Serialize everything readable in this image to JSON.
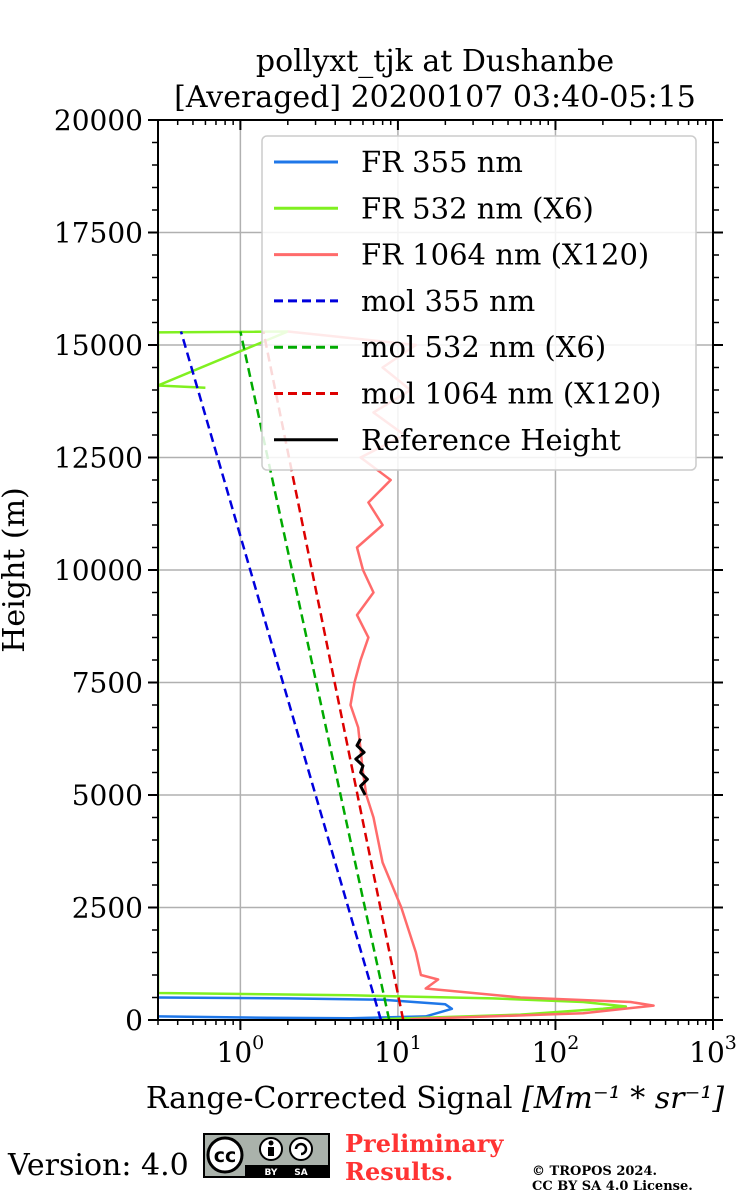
{
  "chart_data": {
    "type": "line",
    "title_line1": "pollyxt_tjk at Dushanbe",
    "title_line2": "[Averaged] 20200107 03:40-05:15",
    "xlabel_text": "Range-Corrected Signal",
    "xlabel_units": "[Mm⁻¹ * sr⁻¹]",
    "ylabel": "Height (m)",
    "xscale": "log",
    "xlim": [
      0.3,
      1000
    ],
    "ylim": [
      0,
      20000
    ],
    "grid": true,
    "legend_position": "upper-right",
    "x_ticks": [
      {
        "value": 1,
        "base": "10",
        "exp": "0"
      },
      {
        "value": 10,
        "base": "10",
        "exp": "1"
      },
      {
        "value": 100,
        "base": "10",
        "exp": "2"
      },
      {
        "value": 1000,
        "base": "10",
        "exp": "3"
      }
    ],
    "y_ticks": [
      0,
      2500,
      5000,
      7500,
      10000,
      12500,
      15000,
      17500,
      20000
    ],
    "series": [
      {
        "name": "FR 355 nm",
        "color": "#1f77e8",
        "style": "solid",
        "points": [
          [
            0.3,
            80
          ],
          [
            1.5,
            50
          ],
          [
            5,
            40
          ],
          [
            15,
            80
          ],
          [
            22,
            250
          ],
          [
            20,
            350
          ],
          [
            8,
            450
          ],
          [
            2,
            480
          ],
          [
            0.3,
            500
          ]
        ]
      },
      {
        "name": "FR 532 nm (X6)",
        "color": "#80f020",
        "style": "solid",
        "points": [
          [
            8,
            20
          ],
          [
            60,
            120
          ],
          [
            200,
            250
          ],
          [
            280,
            300
          ],
          [
            150,
            400
          ],
          [
            40,
            480
          ],
          [
            5,
            550
          ],
          [
            0.3,
            600
          ],
          [
            0.3,
            15280
          ],
          [
            2,
            15300
          ],
          [
            0.3,
            14100
          ],
          [
            0.6,
            14050
          ]
        ]
      },
      {
        "name": "FR 1064 nm (X120)",
        "color": "#ff6b6b",
        "style": "solid",
        "points": [
          [
            12,
            20
          ],
          [
            150,
            150
          ],
          [
            420,
            320
          ],
          [
            300,
            400
          ],
          [
            60,
            500
          ],
          [
            15,
            700
          ],
          [
            18,
            900
          ],
          [
            14,
            1000
          ],
          [
            13,
            1500
          ],
          [
            10.5,
            2500
          ],
          [
            8,
            3500
          ],
          [
            7,
            4500
          ],
          [
            6.3,
            5000
          ],
          [
            6.0,
            5500
          ],
          [
            5.8,
            6000
          ],
          [
            5.6,
            6500
          ],
          [
            5.0,
            7000
          ],
          [
            5.3,
            7500
          ],
          [
            5.8,
            8000
          ],
          [
            6.5,
            8500
          ],
          [
            5.5,
            9000
          ],
          [
            7.0,
            9500
          ],
          [
            6.0,
            10000
          ],
          [
            5.5,
            10500
          ],
          [
            8.0,
            11000
          ],
          [
            6.5,
            11500
          ],
          [
            9.0,
            12000
          ],
          [
            5.8,
            12500
          ],
          [
            11.0,
            13000
          ],
          [
            7.0,
            13500
          ],
          [
            12.0,
            14000
          ],
          [
            8.0,
            14500
          ],
          [
            13.0,
            15000
          ],
          [
            2.0,
            15300
          ]
        ]
      },
      {
        "name": "mol 355 nm",
        "color": "#0000dd",
        "style": "dashed",
        "points": [
          [
            7.8,
            0
          ],
          [
            0.42,
            15300
          ]
        ]
      },
      {
        "name": "mol 532 nm (X6)",
        "color": "#00aa00",
        "style": "dashed",
        "points": [
          [
            8.8,
            0
          ],
          [
            1.0,
            15300
          ]
        ]
      },
      {
        "name": "mol 1064 nm (X120)",
        "color": "#dd0000",
        "style": "dashed",
        "points": [
          [
            10.8,
            0
          ],
          [
            1.4,
            15300
          ]
        ]
      },
      {
        "name": "Reference Height",
        "color": "#000000",
        "style": "solid",
        "points": [
          [
            6.2,
            5000
          ],
          [
            5.8,
            5200
          ],
          [
            6.4,
            5350
          ],
          [
            5.8,
            5500
          ],
          [
            6.0,
            5650
          ],
          [
            5.4,
            5800
          ],
          [
            6.1,
            5950
          ],
          [
            5.5,
            6100
          ],
          [
            5.8,
            6250
          ]
        ]
      }
    ]
  },
  "footer": {
    "version_text": "Version: 4.0",
    "cc_label": "cc",
    "cc_by": "BY",
    "cc_sa": "SA",
    "preliminary_line1": "Preliminary",
    "preliminary_line2": "Results.",
    "copyright_line1": "© TROPOS 2024.",
    "copyright_line2": "CC BY SA 4.0 License."
  }
}
